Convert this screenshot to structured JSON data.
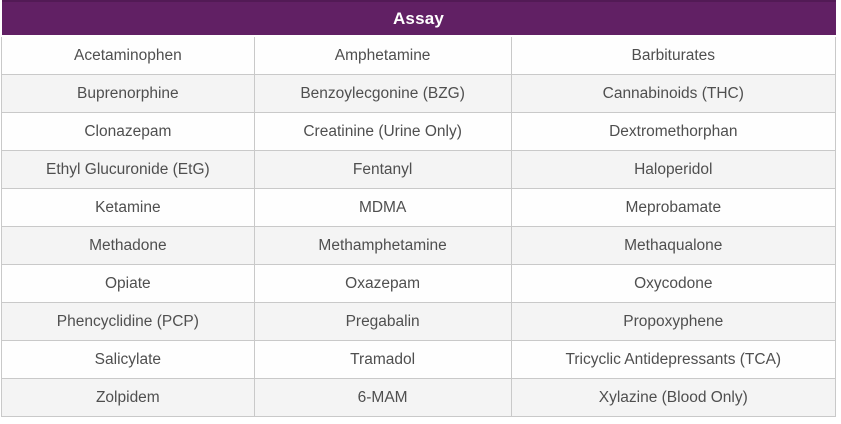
{
  "table": {
    "header": "Assay",
    "rows": [
      [
        "Acetaminophen",
        "Amphetamine",
        "Barbiturates"
      ],
      [
        "Buprenorphine",
        "Benzoylecgonine (BZG)",
        "Cannabinoids (THC)"
      ],
      [
        "Clonazepam",
        "Creatinine (Urine Only)",
        "Dextromethorphan"
      ],
      [
        "Ethyl Glucuronide (EtG)",
        "Fentanyl",
        "Haloperidol"
      ],
      [
        "Ketamine",
        "MDMA",
        "Meprobamate"
      ],
      [
        "Methadone",
        "Methamphetamine",
        "Methaqualone"
      ],
      [
        "Opiate",
        "Oxazepam",
        "Oxycodone"
      ],
      [
        "Phencyclidine (PCP)",
        "Pregabalin",
        "Propoxyphene"
      ],
      [
        "Salicylate",
        "Tramadol",
        "Tricyclic Antidepressants (TCA)"
      ],
      [
        "Zolpidem",
        "6-MAM",
        "Xylazine (Blood Only)"
      ]
    ]
  },
  "colors": {
    "header_bg": "#612064",
    "header_text": "#ffffff",
    "row_odd": "#fefefe",
    "row_even": "#f4f4f4",
    "border": "#c9c9c9",
    "cell_text": "#4f4f4f"
  }
}
